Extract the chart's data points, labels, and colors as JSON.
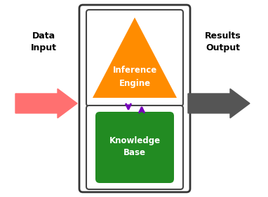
{
  "bg_color": "#ffffff",
  "outer_box_edge": "#333333",
  "inner_box_edge": "#444444",
  "triangle_color": "#FF8C00",
  "kb_rect_color": "#228B22",
  "arrow_left_color": "#FF7070",
  "arrow_right_color": "#555555",
  "arrow_mid_color": "#7700BB",
  "inference_label": "Inference\nEngine",
  "kb_label": "Knowledge\nBase",
  "data_input_label": "Data\nInput",
  "results_output_label": "Results\nOutput",
  "label_color_white": "#ffffff",
  "label_color_black": "#000000"
}
